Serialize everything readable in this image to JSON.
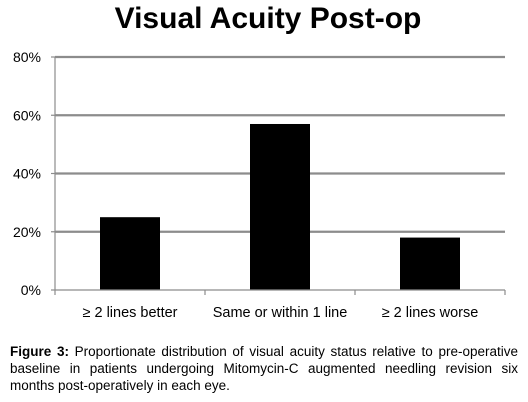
{
  "chart_data": {
    "type": "bar",
    "title": "Visual Acuity Post-op",
    "categories": [
      "≥ 2 lines better",
      "Same or within 1 line",
      "≥ 2 lines worse"
    ],
    "values": [
      25,
      57,
      18
    ],
    "ylim": [
      0,
      80
    ],
    "yticks": [
      0,
      20,
      40,
      60,
      80
    ],
    "ytick_format": "percent",
    "xlabel": "",
    "ylabel": "",
    "bar_color": "#000000",
    "grid": true
  },
  "caption": {
    "label": "Figure 3:",
    "text": " Proportionate distribution of visual acuity status relative to pre-operative baseline in patients undergoing Mitomycin-C augmented needling revision six months post-operatively in each eye."
  }
}
